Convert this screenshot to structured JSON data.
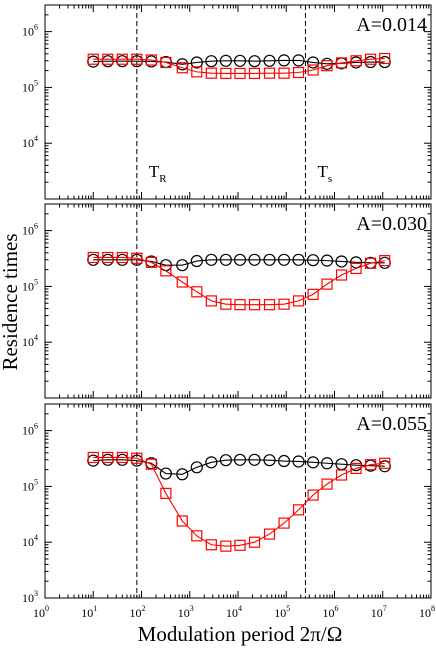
{
  "chart_data": [
    {
      "type": "line",
      "panel_label": "A=0.014",
      "log_x": true,
      "log_y": true,
      "xlim": [
        1,
        100000000
      ],
      "ylim": [
        1000,
        3000000
      ],
      "x": [
        10,
        20,
        40,
        80,
        160,
        320,
        700,
        1400,
        2800,
        5600,
        11000,
        22000,
        45000,
        90000,
        180000,
        360000,
        700000,
        1400000,
        2800000,
        5600000,
        11000000
      ],
      "series": [
        {
          "marker": "circle",
          "color": "#000000",
          "values": [
            290000,
            295000,
            295000,
            295000,
            292000,
            285000,
            260000,
            280000,
            295000,
            300000,
            300000,
            295000,
            300000,
            305000,
            305000,
            280000,
            265000,
            270000,
            280000,
            285000,
            285000
          ]
        },
        {
          "marker": "square",
          "color": "#ff0000",
          "values": [
            320000,
            320000,
            320000,
            320000,
            310000,
            280000,
            225000,
            190000,
            180000,
            178000,
            178000,
            178000,
            180000,
            180000,
            185000,
            205000,
            245000,
            275000,
            300000,
            320000,
            330000
          ]
        }
      ],
      "annotations": [
        {
          "text": "T",
          "sub": "R",
          "x": 80
        },
        {
          "text": "T",
          "sub": "s",
          "x": 250000
        }
      ]
    },
    {
      "type": "line",
      "panel_label": "A=0.030",
      "log_x": true,
      "log_y": true,
      "xlim": [
        1,
        100000000
      ],
      "ylim": [
        1000,
        3000000
      ],
      "x": [
        10,
        20,
        40,
        80,
        160,
        320,
        700,
        1400,
        2800,
        5600,
        11000,
        22000,
        45000,
        90000,
        180000,
        360000,
        700000,
        1400000,
        2800000,
        5600000,
        11000000
      ],
      "series": [
        {
          "marker": "circle",
          "color": "#000000",
          "values": [
            300000,
            300000,
            300000,
            300000,
            280000,
            240000,
            240000,
            285000,
            300000,
            300000,
            300000,
            300000,
            300000,
            300000,
            300000,
            295000,
            290000,
            280000,
            270000,
            265000,
            265000
          ]
        },
        {
          "marker": "square",
          "color": "#ff0000",
          "values": [
            330000,
            330000,
            330000,
            320000,
            270000,
            190000,
            120000,
            80000,
            55000,
            48000,
            47000,
            47000,
            47000,
            48000,
            55000,
            72000,
            110000,
            160000,
            210000,
            260000,
            290000
          ]
        }
      ]
    },
    {
      "type": "line",
      "panel_label": "A=0.055",
      "log_x": true,
      "log_y": true,
      "xlim": [
        1,
        100000000
      ],
      "ylim": [
        1000,
        3000000
      ],
      "x": [
        10,
        20,
        40,
        80,
        160,
        320,
        700,
        1400,
        2800,
        5600,
        11000,
        22000,
        45000,
        90000,
        180000,
        360000,
        700000,
        1400000,
        2800000,
        5600000,
        11000000
      ],
      "series": [
        {
          "marker": "circle",
          "color": "#000000",
          "values": [
            290000,
            300000,
            300000,
            290000,
            260000,
            170000,
            165000,
            220000,
            270000,
            295000,
            300000,
            300000,
            295000,
            285000,
            280000,
            270000,
            260000,
            250000,
            240000,
            235000,
            230000
          ]
        },
        {
          "marker": "square",
          "color": "#ff0000",
          "values": [
            330000,
            330000,
            330000,
            320000,
            250000,
            75000,
            24000,
            13000,
            9000,
            8500,
            8800,
            10000,
            14000,
            22000,
            38000,
            70000,
            110000,
            160000,
            210000,
            245000,
            260000
          ]
        }
      ]
    }
  ],
  "axes": {
    "ylabel": "Residence times",
    "xlabel": "Modulation period  2π/Ω",
    "x_ticks": [
      "10",
      "10",
      "10",
      "10",
      "10",
      "10",
      "10",
      "10",
      "10"
    ],
    "x_tick_exps": [
      "0",
      "1",
      "2",
      "3",
      "4",
      "5",
      "6",
      "7",
      "8"
    ],
    "y_ticks": [
      "10",
      "10",
      "10"
    ],
    "y_tick_exps_top": [
      "6",
      "5",
      "4"
    ],
    "y_tick_exps_mid": [
      "6",
      "5",
      "4"
    ],
    "y_tick_exps_bottom": [
      "6",
      "5",
      "4",
      "3"
    ],
    "vlines": [
      80,
      250000
    ]
  }
}
